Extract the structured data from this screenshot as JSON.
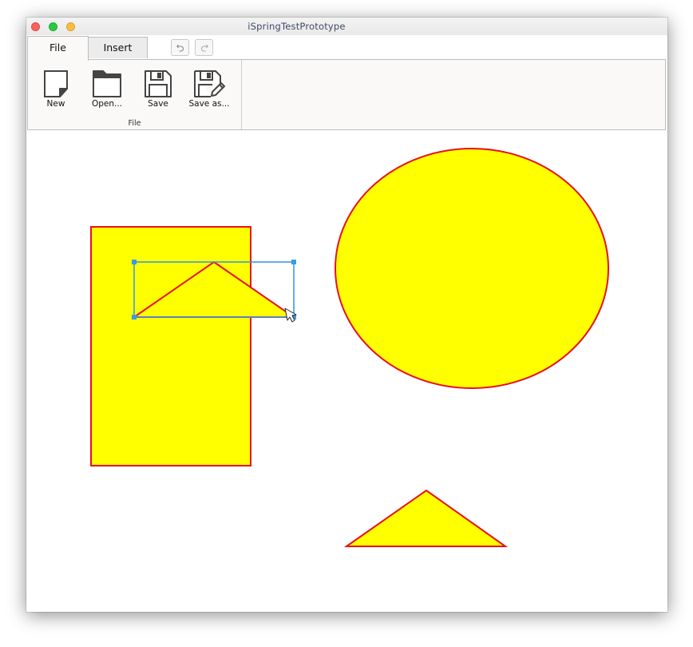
{
  "window": {
    "title": "iSpringTestPrototype"
  },
  "tabs": [
    {
      "label": "File",
      "active": true
    },
    {
      "label": "Insert",
      "active": false
    }
  ],
  "quick_access": {
    "undo_icon": "undo-icon",
    "redo_icon": "redo-icon"
  },
  "ribbon": {
    "group_label": "File",
    "buttons": [
      {
        "label": "New",
        "icon": "new-document-icon"
      },
      {
        "label": "Open...",
        "icon": "folder-icon"
      },
      {
        "label": "Save",
        "icon": "floppy-disk-icon"
      },
      {
        "label": "Save as...",
        "icon": "save-as-icon"
      }
    ]
  },
  "canvas": {
    "shape_fill": "#ffff00",
    "shape_stroke": "#e8101e",
    "selection_color": "#3d9be0",
    "shapes": [
      {
        "type": "rectangle",
        "selected": false
      },
      {
        "type": "ellipse",
        "selected": false
      },
      {
        "type": "triangle",
        "selected": true
      },
      {
        "type": "triangle",
        "selected": false
      }
    ]
  }
}
